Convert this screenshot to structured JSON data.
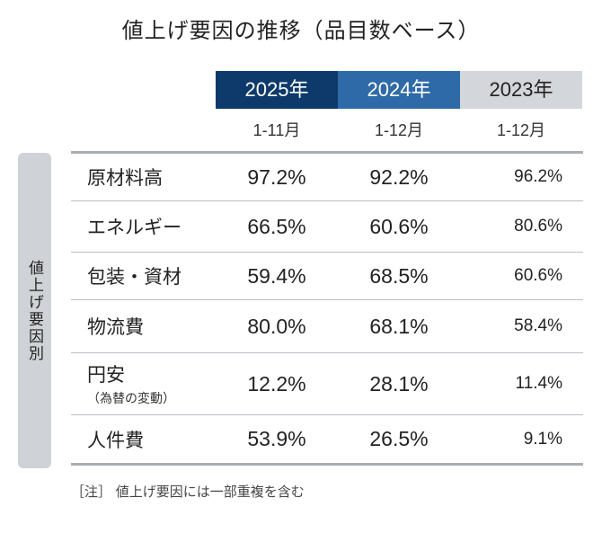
{
  "title": "値上げ要因の推移（品目数ベース）",
  "colors": {
    "year_2025": "#0e3a6b",
    "year_2024": "#2e6aa8",
    "year_2023": "#d3d6da",
    "side_label_bg": "#cfd3d7"
  },
  "columns": [
    {
      "year": "2025年",
      "period": "1-11月"
    },
    {
      "year": "2024年",
      "period": "1-12月"
    },
    {
      "year": "2023年",
      "period": "1-12月"
    }
  ],
  "side_label": "値上げ要因別",
  "rows": [
    {
      "label": "原材料高",
      "values": [
        "97.2%",
        "92.2%",
        "96.2%"
      ]
    },
    {
      "label": "エネルギー",
      "values": [
        "66.5%",
        "60.6%",
        "80.6%"
      ]
    },
    {
      "label": "包装・資材",
      "values": [
        "59.4%",
        "68.5%",
        "60.6%"
      ]
    },
    {
      "label": "物流費",
      "values": [
        "80.0%",
        "68.1%",
        "58.4%"
      ]
    },
    {
      "label": "円安",
      "sublabel": "（為替の変動）",
      "values": [
        "12.2%",
        "28.1%",
        "11.4%"
      ]
    },
    {
      "label": "人件費",
      "values": [
        "53.9%",
        "26.5%",
        "9.1%"
      ]
    }
  ],
  "note": "［注］ 値上げ要因には一部重複を含む"
}
